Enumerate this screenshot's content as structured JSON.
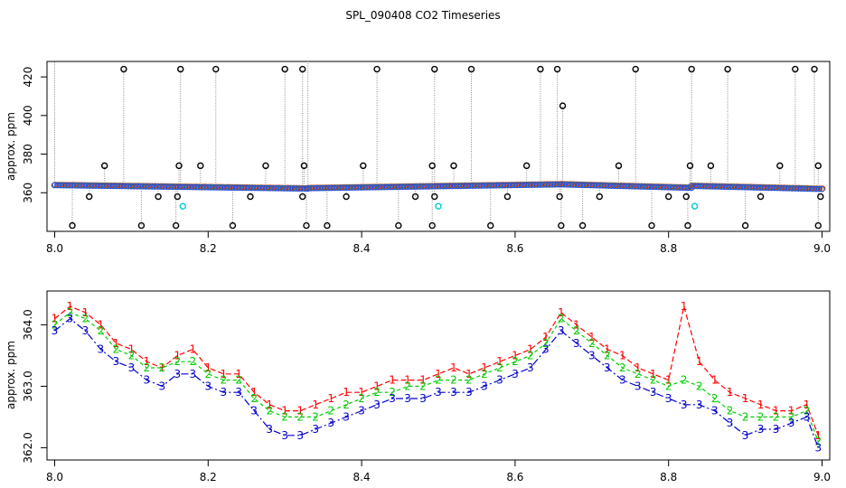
{
  "title": "SPL_090408  CO2 Timeseries",
  "chart_data": [
    {
      "type": "scatter",
      "panel": "top",
      "ylabel": "approx. ppm",
      "xlim": [
        7.99,
        9.01
      ],
      "ylim": [
        340,
        428
      ],
      "xticks": [
        "8.0",
        "8.2",
        "8.4",
        "8.6",
        "8.8",
        "9.0"
      ],
      "xtick_values": [
        8.0,
        8.2,
        8.4,
        8.6,
        8.8,
        9.0
      ],
      "yticks": [
        "360",
        "380",
        "400",
        "420"
      ],
      "ytick_values": [
        360,
        380,
        400,
        420
      ],
      "baseline_segments": [
        {
          "x": [
            8.0,
            8.33
          ],
          "y": [
            364.0,
            362.2
          ]
        },
        {
          "x": [
            8.33,
            8.66
          ],
          "y": [
            362.4,
            364.4
          ]
        },
        {
          "x": [
            8.66,
            8.83
          ],
          "y": [
            364.4,
            362.6
          ]
        },
        {
          "x": [
            8.83,
            9.0
          ],
          "y": [
            363.6,
            362.0
          ]
        }
      ],
      "spike_highs": [
        {
          "x": 8.0,
          "y": 428
        },
        {
          "x": 8.065,
          "y": 374
        },
        {
          "x": 8.09,
          "y": 424
        },
        {
          "x": 8.162,
          "y": 374
        },
        {
          "x": 8.164,
          "y": 424
        },
        {
          "x": 8.19,
          "y": 374
        },
        {
          "x": 8.21,
          "y": 424
        },
        {
          "x": 8.275,
          "y": 374
        },
        {
          "x": 8.3,
          "y": 424
        },
        {
          "x": 8.323,
          "y": 424
        },
        {
          "x": 8.325,
          "y": 374
        },
        {
          "x": 8.33,
          "y": 428
        },
        {
          "x": 8.402,
          "y": 374
        },
        {
          "x": 8.42,
          "y": 424
        },
        {
          "x": 8.492,
          "y": 374
        },
        {
          "x": 8.495,
          "y": 424
        },
        {
          "x": 8.52,
          "y": 374
        },
        {
          "x": 8.543,
          "y": 424
        },
        {
          "x": 8.615,
          "y": 374
        },
        {
          "x": 8.633,
          "y": 424
        },
        {
          "x": 8.655,
          "y": 424
        },
        {
          "x": 8.662,
          "y": 405
        },
        {
          "x": 8.735,
          "y": 374
        },
        {
          "x": 8.757,
          "y": 424
        },
        {
          "x": 8.828,
          "y": 374
        },
        {
          "x": 8.83,
          "y": 424
        },
        {
          "x": 8.855,
          "y": 374
        },
        {
          "x": 8.877,
          "y": 424
        },
        {
          "x": 8.945,
          "y": 374
        },
        {
          "x": 8.965,
          "y": 424
        },
        {
          "x": 8.99,
          "y": 424
        },
        {
          "x": 8.995,
          "y": 374
        }
      ],
      "spike_lows": [
        {
          "x": 8.023,
          "y": 343
        },
        {
          "x": 8.045,
          "y": 358
        },
        {
          "x": 8.113,
          "y": 343
        },
        {
          "x": 8.135,
          "y": 358
        },
        {
          "x": 8.158,
          "y": 343
        },
        {
          "x": 8.16,
          "y": 358
        },
        {
          "x": 8.232,
          "y": 343
        },
        {
          "x": 8.255,
          "y": 358
        },
        {
          "x": 8.323,
          "y": 358
        },
        {
          "x": 8.328,
          "y": 343
        },
        {
          "x": 8.355,
          "y": 343
        },
        {
          "x": 8.38,
          "y": 358
        },
        {
          "x": 8.448,
          "y": 343
        },
        {
          "x": 8.47,
          "y": 358
        },
        {
          "x": 8.492,
          "y": 343
        },
        {
          "x": 8.495,
          "y": 358
        },
        {
          "x": 8.568,
          "y": 343
        },
        {
          "x": 8.59,
          "y": 358
        },
        {
          "x": 8.658,
          "y": 358
        },
        {
          "x": 8.66,
          "y": 343
        },
        {
          "x": 8.688,
          "y": 343
        },
        {
          "x": 8.71,
          "y": 358
        },
        {
          "x": 8.778,
          "y": 343
        },
        {
          "x": 8.8,
          "y": 358
        },
        {
          "x": 8.823,
          "y": 358
        },
        {
          "x": 8.825,
          "y": 343
        },
        {
          "x": 8.9,
          "y": 343
        },
        {
          "x": 8.92,
          "y": 358
        },
        {
          "x": 8.995,
          "y": 343
        },
        {
          "x": 8.998,
          "y": 358
        }
      ],
      "cyan_points": [
        {
          "x": 8.167,
          "y": 353
        },
        {
          "x": 8.5,
          "y": 353
        },
        {
          "x": 8.834,
          "y": 353
        }
      ]
    },
    {
      "type": "line",
      "panel": "bottom",
      "ylabel": "approx. ppm",
      "xlim": [
        7.99,
        9.01
      ],
      "ylim": [
        361.8,
        364.55
      ],
      "xticks": [
        "8.0",
        "8.2",
        "8.4",
        "8.6",
        "8.8",
        "9.0"
      ],
      "xtick_values": [
        8.0,
        8.2,
        8.4,
        8.6,
        8.8,
        9.0
      ],
      "yticks": [
        "362.0",
        "363.0",
        "364.0"
      ],
      "ytick_values": [
        362.0,
        363.0,
        364.0
      ],
      "x": [
        8.0,
        8.02,
        8.04,
        8.06,
        8.08,
        8.1,
        8.12,
        8.14,
        8.16,
        8.18,
        8.2,
        8.22,
        8.24,
        8.26,
        8.28,
        8.3,
        8.32,
        8.34,
        8.36,
        8.38,
        8.4,
        8.42,
        8.44,
        8.46,
        8.48,
        8.5,
        8.52,
        8.54,
        8.56,
        8.58,
        8.6,
        8.62,
        8.64,
        8.66,
        8.68,
        8.7,
        8.72,
        8.74,
        8.76,
        8.78,
        8.8,
        8.82,
        8.84,
        8.86,
        8.88,
        8.9,
        8.92,
        8.94,
        8.96,
        8.98,
        8.995
      ],
      "series": [
        {
          "name": "1",
          "color": "#ff0000",
          "values": [
            364.1,
            364.3,
            364.2,
            364.0,
            363.7,
            363.6,
            363.4,
            363.3,
            363.5,
            363.6,
            363.3,
            363.2,
            363.2,
            362.9,
            362.7,
            362.6,
            362.6,
            362.7,
            362.8,
            362.9,
            362.9,
            363.0,
            363.1,
            363.1,
            363.1,
            363.2,
            363.3,
            363.2,
            363.3,
            363.4,
            363.5,
            363.6,
            363.8,
            364.2,
            364.0,
            363.8,
            363.6,
            363.5,
            363.3,
            363.2,
            363.1,
            364.3,
            363.4,
            363.1,
            362.9,
            362.8,
            362.7,
            362.6,
            362.6,
            362.7,
            362.2
          ]
        },
        {
          "name": "2",
          "color": "#00cc00",
          "values": [
            364.0,
            364.2,
            364.1,
            363.9,
            363.6,
            363.5,
            363.3,
            363.3,
            363.4,
            363.4,
            363.2,
            363.1,
            363.1,
            362.8,
            362.6,
            362.5,
            362.5,
            362.5,
            362.6,
            362.7,
            362.8,
            362.9,
            362.9,
            363.0,
            363.0,
            363.1,
            363.1,
            363.1,
            363.2,
            363.3,
            363.4,
            363.5,
            363.7,
            364.1,
            363.9,
            363.7,
            363.5,
            363.3,
            363.2,
            363.1,
            363.0,
            363.1,
            363.0,
            362.8,
            362.6,
            362.5,
            362.5,
            362.5,
            362.5,
            362.6,
            362.1
          ]
        },
        {
          "name": "3",
          "color": "#0000cc",
          "values": [
            363.9,
            364.1,
            363.9,
            363.6,
            363.4,
            363.3,
            363.1,
            363.0,
            363.2,
            363.2,
            363.0,
            362.9,
            362.9,
            362.6,
            362.3,
            362.2,
            362.2,
            362.3,
            362.4,
            362.5,
            362.6,
            362.7,
            362.8,
            362.8,
            362.8,
            362.9,
            362.9,
            362.9,
            363.0,
            363.1,
            363.2,
            363.3,
            363.6,
            363.9,
            363.7,
            363.5,
            363.3,
            363.1,
            363.0,
            362.9,
            362.8,
            362.7,
            362.7,
            362.6,
            362.4,
            362.2,
            362.3,
            362.3,
            362.4,
            362.5,
            362.0
          ]
        }
      ]
    }
  ]
}
